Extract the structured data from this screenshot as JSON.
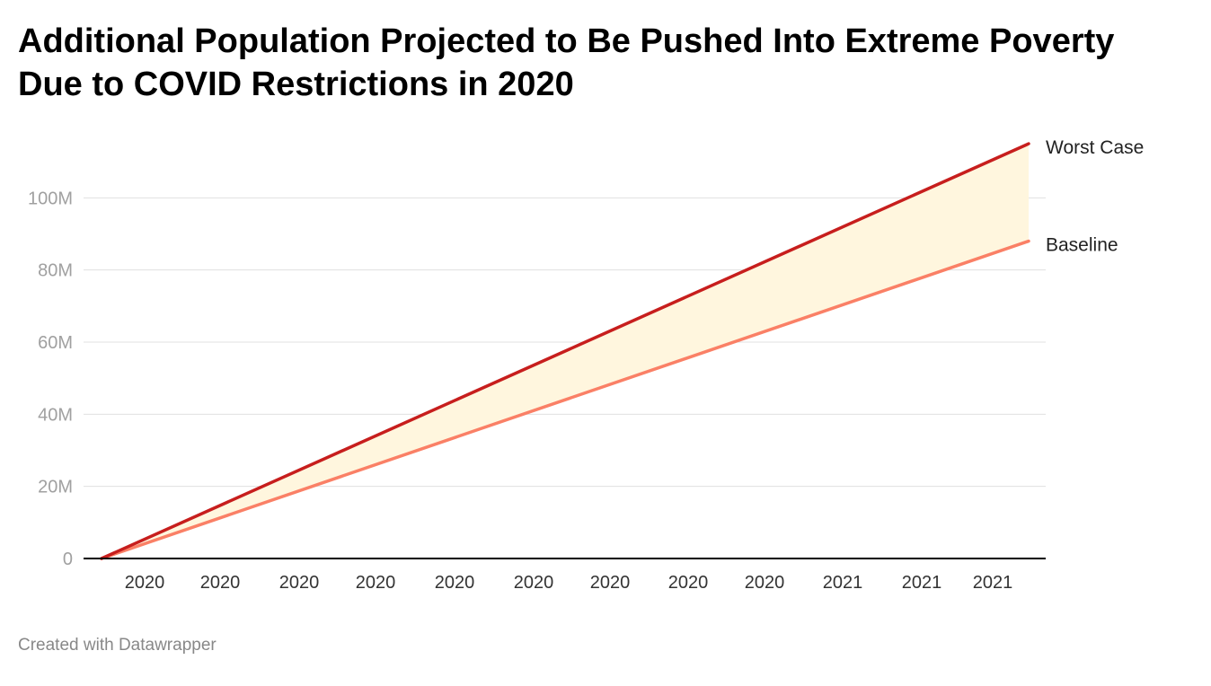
{
  "title": "Additional Population Projected to Be Pushed Into Extreme Poverty Due to COVID Restrictions in 2020",
  "footer": "Created with Datawrapper",
  "colors": {
    "worst_case": "#c71e1d",
    "baseline": "#fa8066",
    "band_fill": "#fff6de",
    "gridline": "#e0e0e0",
    "axis": "#000000"
  },
  "chart_data": {
    "type": "area",
    "title": "Additional Population Projected to Be Pushed Into Extreme Poverty Due to COVID Restrictions in 2020",
    "xlabel": "",
    "ylabel": "",
    "ylim": [
      0,
      120000000
    ],
    "y_ticks": [
      0,
      20000000,
      40000000,
      60000000,
      80000000,
      100000000
    ],
    "y_tick_labels": [
      "0",
      "20M",
      "40M",
      "60M",
      "80M",
      "100M"
    ],
    "x_tick_labels": [
      "2020",
      "2020",
      "2020",
      "2020",
      "2020",
      "2020",
      "2020",
      "2020",
      "2020",
      "2021",
      "2021",
      "2021"
    ],
    "grid": true,
    "legend": "direct labels at line ends (right)",
    "series": [
      {
        "name": "Worst Case",
        "x_start": 0,
        "x_end": 1,
        "values": [
          0,
          115000000
        ]
      },
      {
        "name": "Baseline",
        "x_start": 0,
        "x_end": 1,
        "values": [
          0,
          88000000
        ]
      }
    ],
    "shaded_range_between": [
      "Baseline",
      "Worst Case"
    ]
  }
}
